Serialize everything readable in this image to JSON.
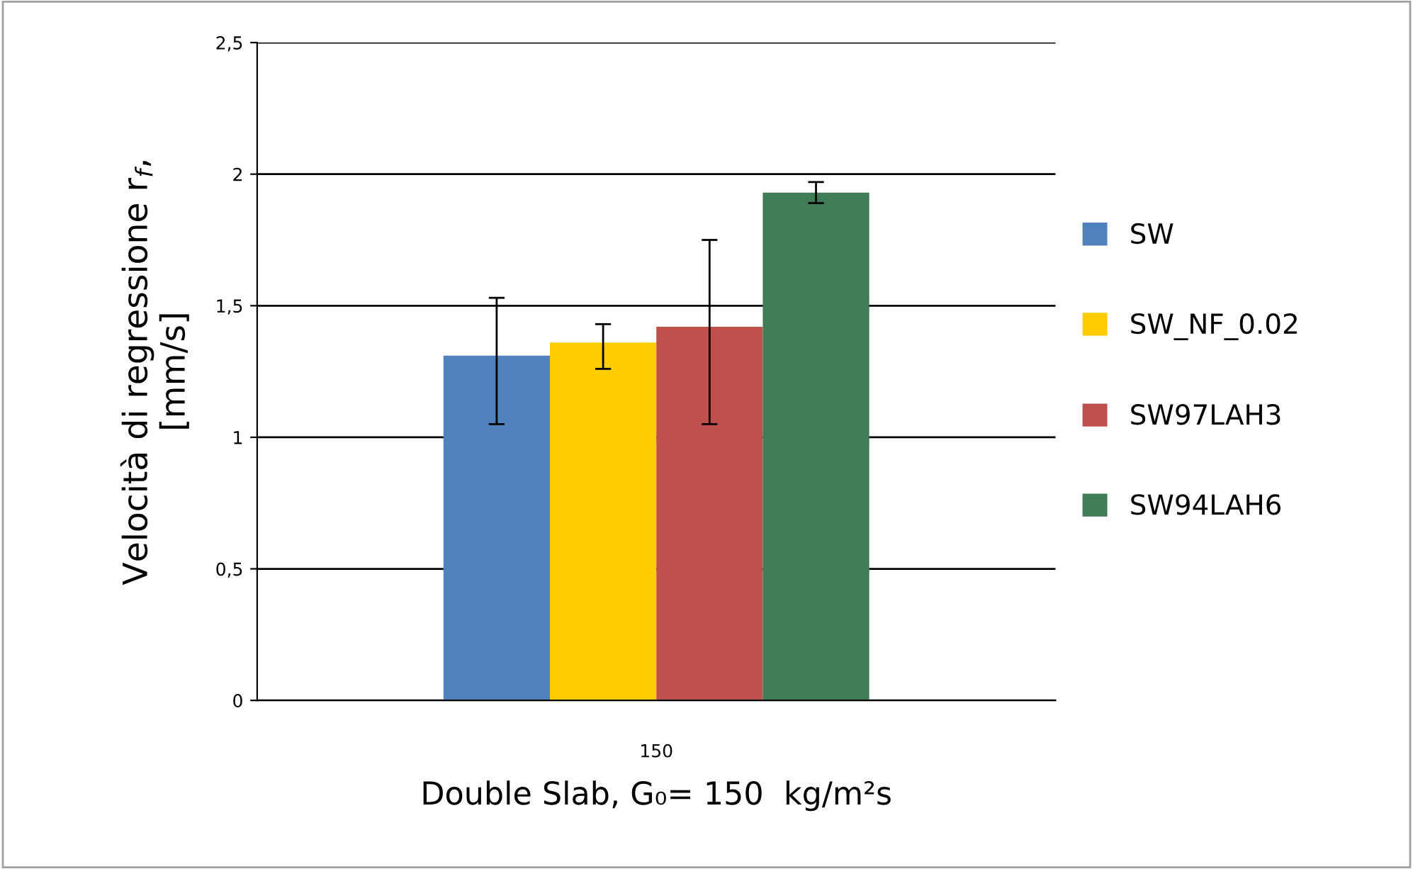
{
  "chart_data": {
    "type": "bar",
    "categories": [
      "150"
    ],
    "series": [
      {
        "name": "SW",
        "color": "#4f81bd",
        "values": [
          1.31
        ],
        "errors": [
          [
            1.05,
            1.53
          ]
        ]
      },
      {
        "name": "SW_NF_0.02",
        "color": "#ffcc00",
        "values": [
          1.36
        ],
        "errors": [
          [
            1.26,
            1.43
          ]
        ]
      },
      {
        "name": "SW97LAH3",
        "color": "#c0504d",
        "values": [
          1.42
        ],
        "errors": [
          [
            1.05,
            1.75
          ]
        ]
      },
      {
        "name": "SW94LAH6",
        "color": "#3e7d55",
        "values": [
          1.93
        ],
        "errors": [
          [
            1.89,
            1.97
          ]
        ]
      }
    ],
    "ylabel": "Velocità di regressione r$_{f}$,\n[mm/s]",
    "xlabel": "Double Slab, G₀= 150  kg/m²s",
    "ylim": [
      0,
      2.5
    ],
    "yticks": [
      0,
      {
        "value": 0.5,
        "label": "0,5"
      },
      1,
      {
        "value": 1.5,
        "label": "1,5"
      },
      2,
      {
        "value": 2.5,
        "label": "2,5"
      }
    ],
    "grid": "y",
    "legend": "right"
  }
}
